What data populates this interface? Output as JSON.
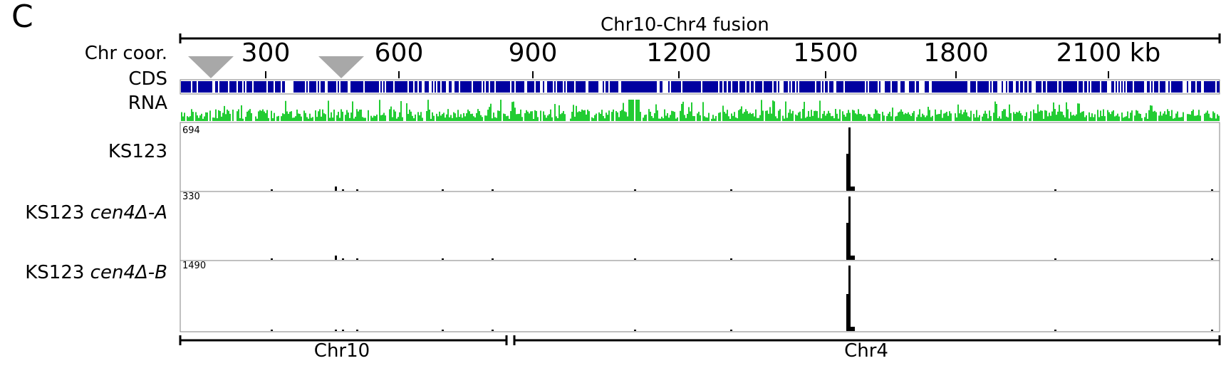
{
  "panel_letter": "C",
  "fusion_label": "Chr10-Chr4 fusion",
  "axis": {
    "label": "Chr coor.",
    "ticks": [
      "300",
      "600",
      "900",
      "1200",
      "1500",
      "1800",
      "2100 kb"
    ]
  },
  "tracks": {
    "cds": "CDS",
    "rna": "RNA",
    "samples": [
      {
        "name": "KS123",
        "suffix": "",
        "max": "694"
      },
      {
        "name": "KS123 ",
        "suffix": "cen4Δ-A",
        "max": "330"
      },
      {
        "name": "KS123 ",
        "suffix": "cen4Δ-B",
        "max": "1490"
      }
    ]
  },
  "chromosomes": [
    "Chr10",
    "Chr4"
  ],
  "colors": {
    "cds": "#0000a0",
    "rna": "#22cc33",
    "signal": "#000000",
    "marker": "#a8a8a8"
  },
  "markers": [
    "centromere-marker-1",
    "centromere-marker-2"
  ]
}
